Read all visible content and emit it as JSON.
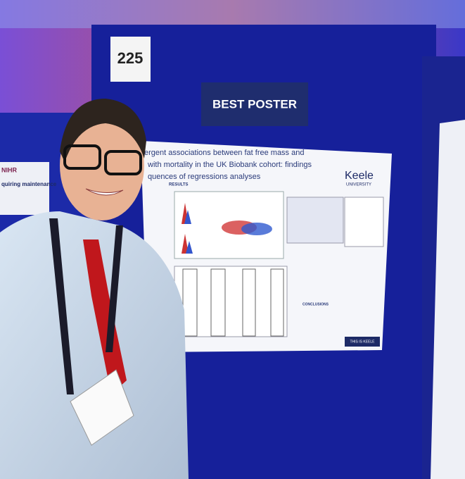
{
  "sign": {
    "number": "225",
    "award": "BEST POSTER"
  },
  "poster": {
    "title_lines": [
      "ergent associations between fat free mass and",
      "with mortality in the UK Biobank cohort: findings",
      "quences of regressions analyses"
    ],
    "university": "Keele",
    "university_sub": "UNIVERSITY",
    "results": "RESULTS",
    "conclusions": "CONCLUSIONS",
    "footer": "THIS IS KEELE"
  },
  "left_poster": {
    "logo": "NIHR",
    "heading": "quiring maintenance"
  }
}
